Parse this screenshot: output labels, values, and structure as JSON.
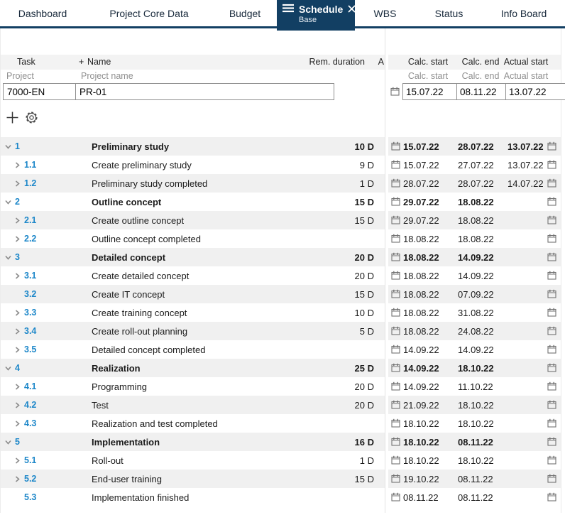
{
  "colors": {
    "accent_navy": "#123f63",
    "task_number_blue": "#1d87c9",
    "row_alt_gray": "#f0f0f0"
  },
  "icons": {
    "hamburger": "menu-lines",
    "close": "x",
    "add": "plus",
    "settings": "gear",
    "calendar": "calendar-outline",
    "expand_open": "chevron-down",
    "expand_closed": "chevron-right"
  },
  "tabs": [
    {
      "label": "Dashboard"
    },
    {
      "label": "Project Core Data"
    },
    {
      "label": "Budget"
    },
    {
      "label": "Schedule",
      "sublabel": "Base",
      "active": true
    },
    {
      "label": "WBS"
    },
    {
      "label": "Status"
    },
    {
      "label": "Info Board"
    }
  ],
  "table": {
    "columns": {
      "task": "Task",
      "add": "+",
      "name": "Name",
      "rem_duration": "Rem. duration",
      "a": "A",
      "calc_start": "Calc. start",
      "calc_end": "Calc. end",
      "actual_start": "Actual start"
    },
    "filter": {
      "project_label": "Project",
      "project_name_label": "Project name",
      "project_value": "7000-EN",
      "project_name_value": "PR-01",
      "calc_start_label": "Calc. start",
      "calc_end_label": "Calc. end",
      "actual_start_label": "Actual start",
      "calc_start_value": "15.07.22",
      "calc_end_value": "08.11.22",
      "actual_start_value": "13.07.22"
    },
    "rows": [
      {
        "num": "1",
        "name": "Preliminary study",
        "duration": "10 D",
        "calc_start": "15.07.22",
        "calc_end": "28.07.22",
        "actual_start": "13.07.22",
        "level": 1,
        "chevron": "down",
        "summary": true
      },
      {
        "num": "1.1",
        "name": "Create preliminary study",
        "duration": "9 D",
        "calc_start": "15.07.22",
        "calc_end": "27.07.22",
        "actual_start": "13.07.22",
        "level": 2,
        "chevron": "right",
        "summary": false
      },
      {
        "num": "1.2",
        "name": "Preliminary study completed",
        "duration": "1 D",
        "calc_start": "28.07.22",
        "calc_end": "28.07.22",
        "actual_start": "14.07.22",
        "level": 2,
        "chevron": "right",
        "summary": false
      },
      {
        "num": "2",
        "name": "Outline concept",
        "duration": "15 D",
        "calc_start": "29.07.22",
        "calc_end": "18.08.22",
        "actual_start": "",
        "level": 1,
        "chevron": "down",
        "summary": true
      },
      {
        "num": "2.1",
        "name": "Create outline concept",
        "duration": "15 D",
        "calc_start": "29.07.22",
        "calc_end": "18.08.22",
        "actual_start": "",
        "level": 2,
        "chevron": "right",
        "summary": false
      },
      {
        "num": "2.2",
        "name": "Outline concept completed",
        "duration": "",
        "calc_start": "18.08.22",
        "calc_end": "18.08.22",
        "actual_start": "",
        "level": 2,
        "chevron": "right",
        "summary": false
      },
      {
        "num": "3",
        "name": "Detailed concept",
        "duration": "20 D",
        "calc_start": "18.08.22",
        "calc_end": "14.09.22",
        "actual_start": "",
        "level": 1,
        "chevron": "down",
        "summary": true
      },
      {
        "num": "3.1",
        "name": "Create detailed concept",
        "duration": "20 D",
        "calc_start": "18.08.22",
        "calc_end": "14.09.22",
        "actual_start": "",
        "level": 2,
        "chevron": "right",
        "summary": false
      },
      {
        "num": "3.2",
        "name": "Create IT concept",
        "duration": "15 D",
        "calc_start": "18.08.22",
        "calc_end": "07.09.22",
        "actual_start": "",
        "level": 2,
        "chevron": "none",
        "summary": false
      },
      {
        "num": "3.3",
        "name": "Create training concept",
        "duration": "10 D",
        "calc_start": "18.08.22",
        "calc_end": "31.08.22",
        "actual_start": "",
        "level": 2,
        "chevron": "right",
        "summary": false
      },
      {
        "num": "3.4",
        "name": "Create roll-out planning",
        "duration": "5 D",
        "calc_start": "18.08.22",
        "calc_end": "24.08.22",
        "actual_start": "",
        "level": 2,
        "chevron": "right",
        "summary": false
      },
      {
        "num": "3.5",
        "name": "Detailed concept completed",
        "duration": "",
        "calc_start": "14.09.22",
        "calc_end": "14.09.22",
        "actual_start": "",
        "level": 2,
        "chevron": "right",
        "summary": false
      },
      {
        "num": "4",
        "name": "Realization",
        "duration": "25 D",
        "calc_start": "14.09.22",
        "calc_end": "18.10.22",
        "actual_start": "",
        "level": 1,
        "chevron": "down",
        "summary": true
      },
      {
        "num": "4.1",
        "name": "Programming",
        "duration": "20 D",
        "calc_start": "14.09.22",
        "calc_end": "11.10.22",
        "actual_start": "",
        "level": 2,
        "chevron": "right",
        "summary": false
      },
      {
        "num": "4.2",
        "name": "Test",
        "duration": "20 D",
        "calc_start": "21.09.22",
        "calc_end": "18.10.22",
        "actual_start": "",
        "level": 2,
        "chevron": "right",
        "summary": false
      },
      {
        "num": "4.3",
        "name": "Realization and test completed",
        "duration": "",
        "calc_start": "18.10.22",
        "calc_end": "18.10.22",
        "actual_start": "",
        "level": 2,
        "chevron": "right",
        "summary": false
      },
      {
        "num": "5",
        "name": "Implementation",
        "duration": "16 D",
        "calc_start": "18.10.22",
        "calc_end": "08.11.22",
        "actual_start": "",
        "level": 1,
        "chevron": "down",
        "summary": true
      },
      {
        "num": "5.1",
        "name": "Roll-out",
        "duration": "1 D",
        "calc_start": "18.10.22",
        "calc_end": "18.10.22",
        "actual_start": "",
        "level": 2,
        "chevron": "right",
        "summary": false
      },
      {
        "num": "5.2",
        "name": "End-user training",
        "duration": "15 D",
        "calc_start": "19.10.22",
        "calc_end": "08.11.22",
        "actual_start": "",
        "level": 2,
        "chevron": "right",
        "summary": false
      },
      {
        "num": "5.3",
        "name": "Implementation finished",
        "duration": "",
        "calc_start": "08.11.22",
        "calc_end": "08.11.22",
        "actual_start": "",
        "level": 2,
        "chevron": "none",
        "summary": false
      }
    ]
  }
}
